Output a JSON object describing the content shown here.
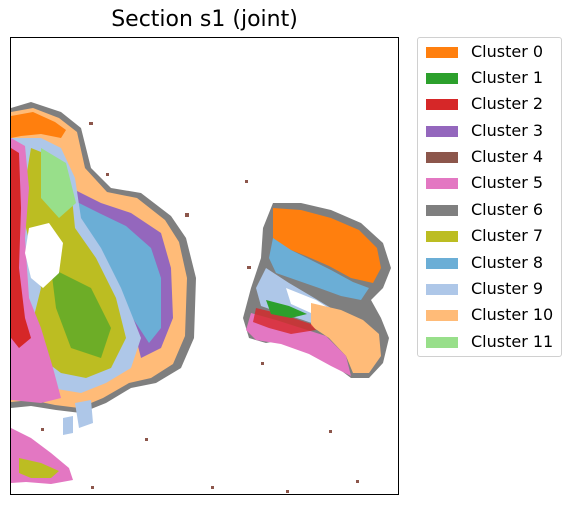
{
  "title": "Section s1 (joint)",
  "legend": [
    {
      "label": "Cluster 0",
      "color": "#ff7f0e"
    },
    {
      "label": "Cluster 1",
      "color": "#2ca02c"
    },
    {
      "label": "Cluster 2",
      "color": "#d62728"
    },
    {
      "label": "Cluster 3",
      "color": "#9467bd"
    },
    {
      "label": "Cluster 4",
      "color": "#8c564b"
    },
    {
      "label": "Cluster 5",
      "color": "#e377c2"
    },
    {
      "label": "Cluster 6",
      "color": "#7f7f7f"
    },
    {
      "label": "Cluster 7",
      "color": "#bcbd22"
    },
    {
      "label": "Cluster 8",
      "color": "#6baed6"
    },
    {
      "label": "Cluster 9",
      "color": "#aec7e8"
    },
    {
      "label": "Cluster 10",
      "color": "#ffbb78"
    },
    {
      "label": "Cluster 11",
      "color": "#98df8a"
    }
  ]
}
